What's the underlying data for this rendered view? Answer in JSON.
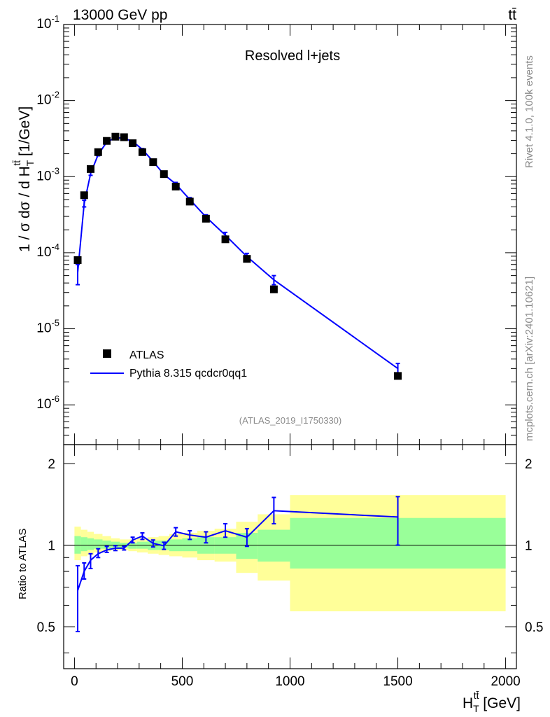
{
  "header": {
    "energy": "13000 GeV pp",
    "process": "tt̄"
  },
  "side_labels": {
    "rivet": "Rivet 4.1.0,  100k events",
    "mcplots": "mcplots.cern.ch [arXiv:2401.10621]"
  },
  "chart_data": [
    {
      "type": "scatter",
      "title": "Resolved l+jets",
      "analysis_tag": "(ATLAS_2019_I1750330)",
      "ylabel": "1 / σ dσ / d H_T^{tt̄} [1/GeV]",
      "yscale": "log",
      "ylim": [
        3e-07,
        0.1
      ],
      "xlim": [
        -50,
        2050
      ],
      "ytick_labels": [
        "10^-6",
        "10^-5",
        "10^-4",
        "10^-3",
        "10^-2",
        "10^-1"
      ],
      "legend": {
        "position": "bottom-left",
        "entries": [
          "ATLAS",
          "Pythia 8.315 qcdcr0qq1"
        ]
      },
      "series": [
        {
          "name": "ATLAS",
          "style": "square-markers",
          "x": [
            15,
            45,
            75,
            110,
            150,
            190,
            230,
            270,
            315,
            365,
            415,
            470,
            535,
            610,
            700,
            800,
            925,
            1500
          ],
          "values": [
            8e-05,
            0.00057,
            0.00126,
            0.0021,
            0.00295,
            0.00335,
            0.0033,
            0.00275,
            0.0021,
            0.00155,
            0.00108,
            0.00074,
            0.00047,
            0.00028,
            0.00015,
            8.3e-05,
            3.3e-05,
            2.4e-06
          ]
        },
        {
          "name": "Pythia 8.315 qcdcr0qq1",
          "style": "line-with-errorbars",
          "color": "#0000ff",
          "x": [
            15,
            45,
            75,
            110,
            150,
            190,
            230,
            270,
            315,
            365,
            415,
            470,
            535,
            610,
            700,
            800,
            925,
            1500
          ],
          "values": [
            5.5e-05,
            0.00044,
            0.0011,
            0.00195,
            0.00285,
            0.00325,
            0.0032,
            0.0029,
            0.00228,
            0.00158,
            0.00107,
            0.0008,
            0.0005,
            0.000295,
            0.00017,
            8.9e-05,
            4.4e-05,
            3e-06
          ],
          "err_lo": [
            3.8e-05,
            0.0004,
            0.00104,
            0.00188,
            0.00278,
            0.00318,
            0.00313,
            0.00284,
            0.00222,
            0.00153,
            0.00103,
            0.00076,
            0.00047,
            0.000275,
            0.000155,
            8e-05,
            3.8e-05,
            2.6e-06
          ],
          "err_hi": [
            7e-05,
            0.00049,
            0.00116,
            0.00202,
            0.00292,
            0.00332,
            0.00327,
            0.00296,
            0.00234,
            0.00163,
            0.00111,
            0.00084,
            0.00053,
            0.000315,
            0.000185,
            9.8e-05,
            5e-05,
            3.5e-06
          ]
        }
      ]
    },
    {
      "type": "ratio",
      "ylabel": "Ratio to ATLAS",
      "ylim": [
        0.35,
        2.35
      ],
      "xlim": [
        -50,
        2050
      ],
      "xlabel": "H_T^{tt̄} [GeV]",
      "ytick_labels": [
        "0.5",
        "1",
        "2"
      ],
      "xtick_labels": [
        "0",
        "500",
        "1000",
        "1500",
        "2000"
      ],
      "reference_line": 1.0,
      "bands": {
        "edges": [
          0,
          30,
          60,
          90,
          130,
          170,
          210,
          250,
          290,
          340,
          390,
          440,
          500,
          570,
          650,
          750,
          850,
          1000,
          2000
        ],
        "green_lo": [
          0.93,
          0.95,
          0.96,
          0.97,
          0.97,
          0.98,
          0.98,
          0.97,
          0.97,
          0.96,
          0.96,
          0.95,
          0.95,
          0.93,
          0.93,
          0.89,
          0.87,
          0.82
        ],
        "green_hi": [
          1.08,
          1.07,
          1.06,
          1.05,
          1.04,
          1.03,
          1.02,
          1.02,
          1.03,
          1.04,
          1.04,
          1.05,
          1.06,
          1.07,
          1.07,
          1.11,
          1.14,
          1.26
        ],
        "yellow_lo": [
          0.88,
          0.91,
          0.92,
          0.94,
          0.95,
          0.96,
          0.96,
          0.95,
          0.94,
          0.93,
          0.92,
          0.91,
          0.9,
          0.88,
          0.87,
          0.79,
          0.74,
          0.57
        ],
        "yellow_hi": [
          1.17,
          1.14,
          1.12,
          1.1,
          1.08,
          1.06,
          1.05,
          1.05,
          1.06,
          1.07,
          1.08,
          1.1,
          1.11,
          1.13,
          1.15,
          1.22,
          1.3,
          1.53
        ]
      },
      "series": [
        {
          "name": "Pythia 8.315 qcdcr0qq1 / ATLAS",
          "color": "#0000ff",
          "x": [
            15,
            45,
            75,
            110,
            150,
            190,
            230,
            270,
            315,
            365,
            415,
            470,
            535,
            610,
            700,
            800,
            925,
            1500
          ],
          "values": [
            0.68,
            0.8,
            0.88,
            0.93,
            0.96,
            0.975,
            0.975,
            1.045,
            1.08,
            1.015,
            0.995,
            1.12,
            1.09,
            1.07,
            1.13,
            1.07,
            1.34,
            1.27
          ],
          "err_lo": [
            0.48,
            0.75,
            0.82,
            0.9,
            0.94,
            0.955,
            0.96,
            1.02,
            1.05,
            0.985,
            0.965,
            1.08,
            1.05,
            1.02,
            1.07,
            0.99,
            1.2,
            1.0
          ],
          "err_hi": [
            0.84,
            0.86,
            0.93,
            0.97,
            0.99,
            0.995,
            0.99,
            1.07,
            1.11,
            1.045,
            1.025,
            1.16,
            1.13,
            1.12,
            1.2,
            1.15,
            1.5,
            1.51
          ]
        }
      ]
    }
  ]
}
